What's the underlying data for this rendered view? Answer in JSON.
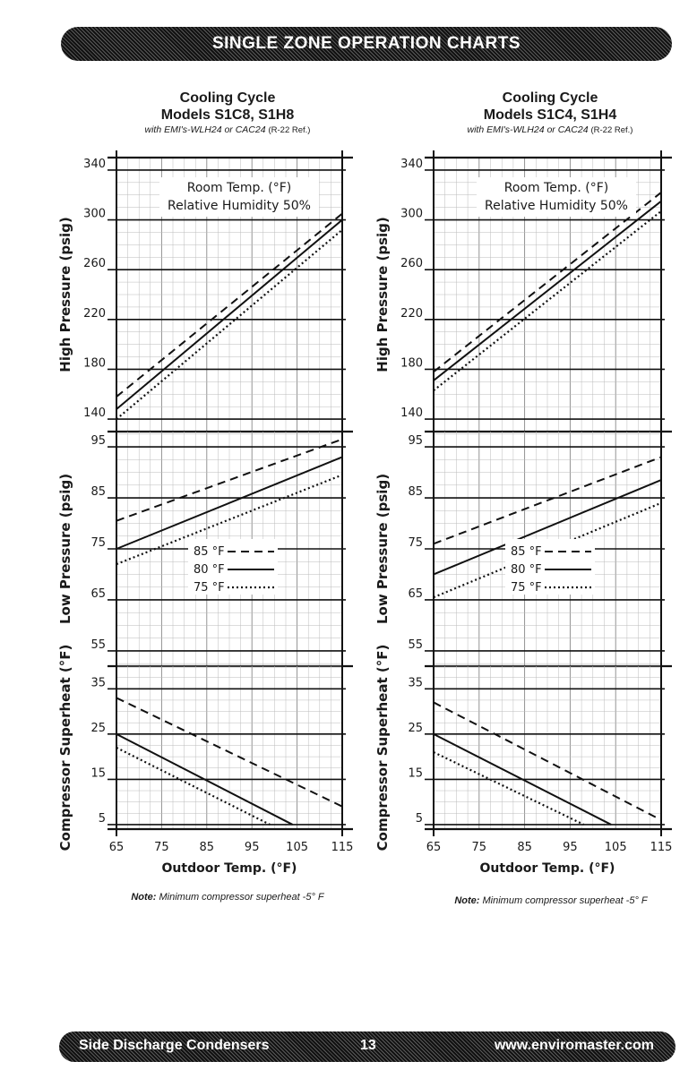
{
  "header": {
    "title": "SINGLE ZONE OPERATION CHARTS"
  },
  "footer": {
    "left": "Side Discharge Condensers",
    "page": "13",
    "right": "www.enviromaster.com"
  },
  "charts": [
    {
      "title": "Cooling Cycle",
      "models": "Models S1C8, S1H8",
      "subtitle_italic": "with EMI's-WLH24 or CAC24",
      "subtitle_ref": "(R-22 Ref.)",
      "note_label": "Note:",
      "note_text": "Minimum compressor superheat -5° F",
      "legend_room_temp": "Room Temp. (°F)",
      "legend_humidity": "Relative Humidity 50%",
      "legend_items": [
        {
          "label": "85 °F",
          "style": "dashed"
        },
        {
          "label": "80 °F",
          "style": "solid"
        },
        {
          "label": "75 °F",
          "style": "dotted"
        }
      ],
      "x_axis": {
        "label": "Outdoor Temp. (°F)",
        "ticks": [
          "65",
          "75",
          "85",
          "95",
          "105",
          "115"
        ],
        "range": [
          65,
          115
        ]
      },
      "high_pressure": {
        "ylabel": "High Pressure (psig)",
        "ticks": [
          "140",
          "180",
          "220",
          "260",
          "300",
          "340"
        ],
        "range": [
          130,
          350
        ],
        "series": [
          {
            "name": "85 °F",
            "style": "dashed",
            "values": [
              [
                65,
                158
              ],
              [
                115,
                305
              ]
            ]
          },
          {
            "name": "80 °F",
            "style": "solid",
            "values": [
              [
                65,
                148
              ],
              [
                115,
                300
              ]
            ]
          },
          {
            "name": "75 °F",
            "style": "dotted",
            "values": [
              [
                65,
                140
              ],
              [
                115,
                292
              ]
            ]
          }
        ]
      },
      "low_pressure": {
        "ylabel": "Low Pressure (psig)",
        "ticks": [
          "55",
          "65",
          "75",
          "85",
          "95"
        ],
        "range": [
          52,
          98
        ],
        "series": [
          {
            "name": "85 °F",
            "style": "dashed",
            "values": [
              [
                65,
                80.5
              ],
              [
                115,
                96.5
              ]
            ]
          },
          {
            "name": "80 °F",
            "style": "solid",
            "values": [
              [
                65,
                75
              ],
              [
                115,
                93
              ]
            ]
          },
          {
            "name": "75 °F",
            "style": "dotted",
            "values": [
              [
                65,
                72
              ],
              [
                115,
                89.5
              ]
            ]
          }
        ]
      },
      "superheat": {
        "ylabel": "Compressor Superheat (°F)",
        "ticks": [
          "5",
          "15",
          "25",
          "35"
        ],
        "range": [
          4,
          40
        ],
        "series": [
          {
            "name": "85 °F",
            "style": "dashed",
            "values": [
              [
                65,
                33
              ],
              [
                115,
                9
              ]
            ]
          },
          {
            "name": "80 °F",
            "style": "solid",
            "values": [
              [
                65,
                25
              ],
              [
                104,
                5
              ]
            ]
          },
          {
            "name": "75 °F",
            "style": "dotted",
            "values": [
              [
                65,
                22
              ],
              [
                99,
                5
              ]
            ]
          }
        ]
      }
    },
    {
      "title": "Cooling Cycle",
      "models": "Models S1C4, S1H4",
      "subtitle_italic": "with EMI's-WLH24 or CAC24",
      "subtitle_ref": "(R-22 Ref.)",
      "note_label": "Note:",
      "note_text": "Minimum compressor superheat -5° F",
      "legend_room_temp": "Room Temp. (°F)",
      "legend_humidity": "Relative Humidity 50%",
      "legend_items": [
        {
          "label": "85 °F",
          "style": "dashed"
        },
        {
          "label": "80 °F",
          "style": "solid"
        },
        {
          "label": "75 °F",
          "style": "dotted"
        }
      ],
      "x_axis": {
        "label": "Outdoor Temp. (°F)",
        "ticks": [
          "65",
          "75",
          "85",
          "95",
          "105",
          "115"
        ],
        "range": [
          65,
          115
        ]
      },
      "high_pressure": {
        "ylabel": "High Pressure (psig)",
        "ticks": [
          "140",
          "180",
          "220",
          "260",
          "300",
          "340"
        ],
        "range": [
          130,
          350
        ],
        "series": [
          {
            "name": "85 °F",
            "style": "dashed",
            "values": [
              [
                65,
                178
              ],
              [
                115,
                322
              ]
            ]
          },
          {
            "name": "80 °F",
            "style": "solid",
            "values": [
              [
                65,
                171
              ],
              [
                115,
                315
              ]
            ]
          },
          {
            "name": "75 °F",
            "style": "dotted",
            "values": [
              [
                65,
                163
              ],
              [
                115,
                307
              ]
            ]
          }
        ]
      },
      "low_pressure": {
        "ylabel": "Low Pressure (psig)",
        "ticks": [
          "55",
          "65",
          "75",
          "85",
          "95"
        ],
        "range": [
          52,
          98
        ],
        "series": [
          {
            "name": "85 °F",
            "style": "dashed",
            "values": [
              [
                65,
                76
              ],
              [
                115,
                93
              ]
            ]
          },
          {
            "name": "80 °F",
            "style": "solid",
            "values": [
              [
                65,
                70
              ],
              [
                115,
                88.5
              ]
            ]
          },
          {
            "name": "75 °F",
            "style": "dotted",
            "values": [
              [
                65,
                65.5
              ],
              [
                115,
                84
              ]
            ]
          }
        ]
      },
      "superheat": {
        "ylabel": "Compressor Superheat (°F)",
        "ticks": [
          "5",
          "15",
          "25",
          "35"
        ],
        "range": [
          4,
          40
        ],
        "series": [
          {
            "name": "85 °F",
            "style": "dashed",
            "values": [
              [
                65,
                32
              ],
              [
                115,
                6
              ]
            ]
          },
          {
            "name": "80 °F",
            "style": "solid",
            "values": [
              [
                65,
                25
              ],
              [
                104,
                5
              ]
            ]
          },
          {
            "name": "75 °F",
            "style": "dotted",
            "values": [
              [
                65,
                21
              ],
              [
                98,
                5
              ]
            ]
          }
        ]
      }
    }
  ],
  "chart_data": [
    {
      "type": "line",
      "title": "Cooling Cycle Models S1C8, S1H8 — High Pressure",
      "xlabel": "Outdoor Temp. (°F)",
      "ylabel": "High Pressure (psig)",
      "x": [
        65,
        115
      ],
      "xlim": [
        65,
        115
      ],
      "series": [
        {
          "name": "85 °F",
          "values": [
            158,
            305
          ]
        },
        {
          "name": "80 °F",
          "values": [
            148,
            300
          ]
        },
        {
          "name": "75 °F",
          "values": [
            140,
            292
          ]
        }
      ]
    },
    {
      "type": "line",
      "title": "Cooling Cycle Models S1C8, S1H8 — Low Pressure",
      "xlabel": "Outdoor Temp. (°F)",
      "ylabel": "Low Pressure (psig)",
      "x": [
        65,
        115
      ],
      "xlim": [
        65,
        115
      ],
      "series": [
        {
          "name": "85 °F",
          "values": [
            80.5,
            96.5
          ]
        },
        {
          "name": "80 °F",
          "values": [
            75,
            93
          ]
        },
        {
          "name": "75 °F",
          "values": [
            72,
            89.5
          ]
        }
      ]
    },
    {
      "type": "line",
      "title": "Cooling Cycle Models S1C8, S1H8 — Compressor Superheat",
      "xlabel": "Outdoor Temp. (°F)",
      "ylabel": "Compressor Superheat (°F)",
      "xlim": [
        65,
        115
      ],
      "series": [
        {
          "name": "85 °F",
          "x": [
            65,
            115
          ],
          "values": [
            33,
            9
          ]
        },
        {
          "name": "80 °F",
          "x": [
            65,
            104
          ],
          "values": [
            25,
            5
          ]
        },
        {
          "name": "75 °F",
          "x": [
            65,
            99
          ],
          "values": [
            22,
            5
          ]
        }
      ]
    },
    {
      "type": "line",
      "title": "Cooling Cycle Models S1C4, S1H4 — High Pressure",
      "xlabel": "Outdoor Temp. (°F)",
      "ylabel": "High Pressure (psig)",
      "x": [
        65,
        115
      ],
      "xlim": [
        65,
        115
      ],
      "series": [
        {
          "name": "85 °F",
          "values": [
            178,
            322
          ]
        },
        {
          "name": "80 °F",
          "values": [
            171,
            315
          ]
        },
        {
          "name": "75 °F",
          "values": [
            163,
            307
          ]
        }
      ]
    },
    {
      "type": "line",
      "title": "Cooling Cycle Models S1C4, S1H4 — Low Pressure",
      "xlabel": "Outdoor Temp. (°F)",
      "ylabel": "Low Pressure (psig)",
      "x": [
        65,
        115
      ],
      "xlim": [
        65,
        115
      ],
      "series": [
        {
          "name": "85 °F",
          "values": [
            76,
            93
          ]
        },
        {
          "name": "80 °F",
          "values": [
            70,
            88.5
          ]
        },
        {
          "name": "75 °F",
          "values": [
            65.5,
            84
          ]
        }
      ]
    },
    {
      "type": "line",
      "title": "Cooling Cycle Models S1C4, S1H4 — Compressor Superheat",
      "xlabel": "Outdoor Temp. (°F)",
      "ylabel": "Compressor Superheat (°F)",
      "xlim": [
        65,
        115
      ],
      "series": [
        {
          "name": "85 °F",
          "x": [
            65,
            115
          ],
          "values": [
            32,
            6
          ]
        },
        {
          "name": "80 °F",
          "x": [
            65,
            104
          ],
          "values": [
            25,
            5
          ]
        },
        {
          "name": "75 °F",
          "x": [
            65,
            98
          ],
          "values": [
            21,
            5
          ]
        }
      ]
    }
  ]
}
